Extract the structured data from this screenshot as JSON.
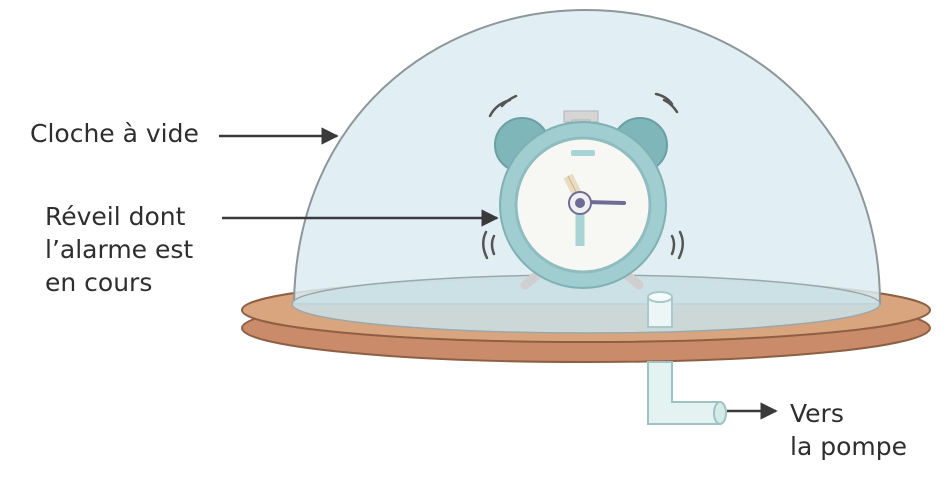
{
  "labels": {
    "bell_jar": "Cloche à vide",
    "alarm_clock": [
      "Réveil dont",
      "l’alarme est",
      "en cours"
    ],
    "pump": [
      "Vers",
      "la pompe"
    ]
  },
  "colors": {
    "dome_fill": "#dcecf2",
    "dome_stroke": "#8d969a",
    "base_top": "#d8a57e",
    "base_side": "#c98b6a",
    "clock_body": "#9fcdd0",
    "clock_bells": "#7fb6ba",
    "clock_hands": "#e9dcc0",
    "clock_minute_hand": "#6f6b96",
    "tube": "#e4f3f2",
    "arrow": "#3a3a3a"
  },
  "icons": [
    "alarm-clock-icon",
    "vibration-lines-icon",
    "arrow-icon"
  ]
}
